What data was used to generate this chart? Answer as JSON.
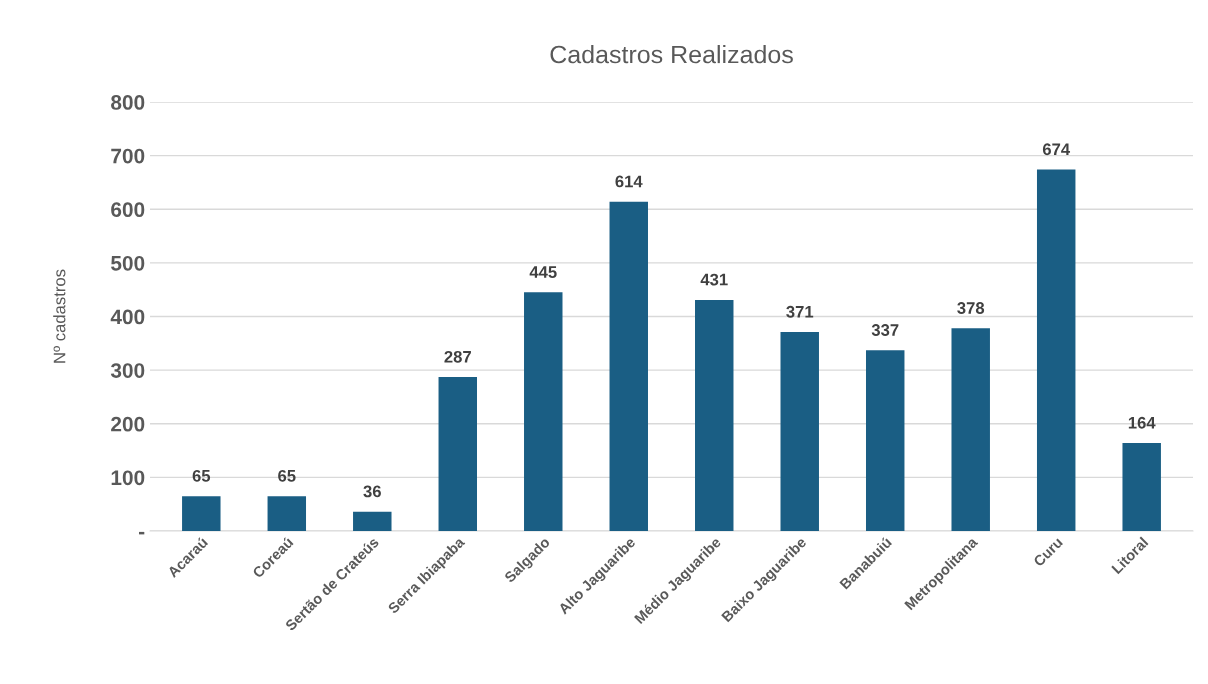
{
  "chart_data": {
    "type": "bar",
    "title": "Cadastros Realizados",
    "ylabel": "Nº cadastros",
    "categories": [
      "Acaraú",
      "Coreaú",
      "Sertão de Crateús",
      "Serra Ibiapaba",
      "Salgado",
      "Alto Jaguaribe",
      "Médio Jaguaribe",
      "Baixo Jaguaribe",
      "Banabuiú",
      "Metropolitana",
      "Curu",
      "Litoral"
    ],
    "values": [
      65,
      65,
      36,
      287,
      445,
      614,
      431,
      371,
      337,
      378,
      674,
      164
    ],
    "color": "#1a5e84",
    "ylim": [
      0,
      800
    ],
    "yticks": [
      {
        "value": 0,
        "label": "-"
      },
      100,
      200,
      300,
      400,
      500,
      600,
      700,
      800
    ],
    "grid": "y",
    "data_labels": true
  }
}
